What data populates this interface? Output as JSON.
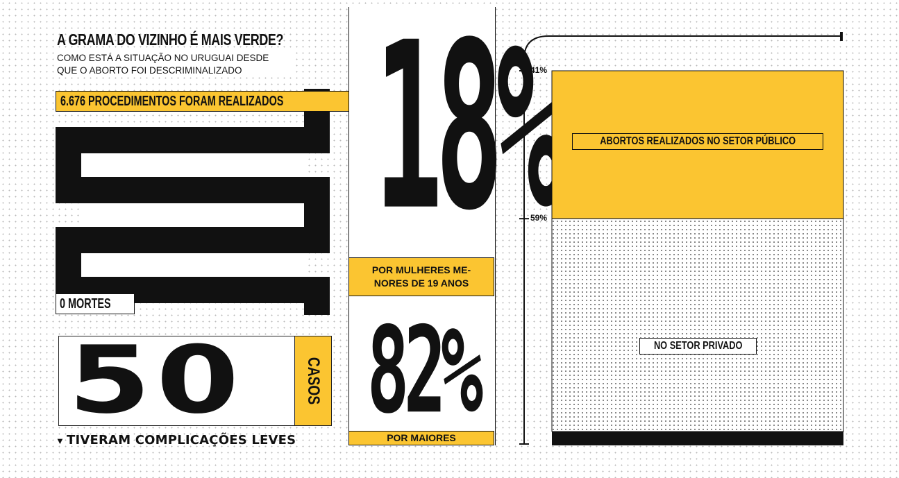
{
  "left": {
    "title": "A GRAMA DO VIZINHO É MAIS VERDE?",
    "subtitle": "COMO ESTÁ A SITUAÇÃO NO URUGUAI DESDE\nQUE O ABORTO FOI DESCRIMINALIZADO",
    "procedures_label": "6.676 PROCEDIMENTOS FORAM REALIZADOS",
    "deaths_label": "0 MORTES",
    "cases_number": "50",
    "cases_tag": "CASOS",
    "cases_caption": "TIVERAM COMPLICAÇÕES LEVES"
  },
  "middle": {
    "pct_under19": "18%",
    "under19_label": "POR MULHERES ME-\nNORES DE 19 ANOS",
    "pct_adults": "82%",
    "adults_label": "POR MAIORES"
  },
  "chart_data": {
    "type": "bar",
    "stacked": true,
    "categories": [
      ""
    ],
    "series": [
      {
        "name": "ABORTOS REALIZADOS NO SETOR PÚBLICO",
        "values": [
          41
        ],
        "color": "#fbc531"
      },
      {
        "name": "NO SETOR PRIVADO",
        "values": [
          59
        ],
        "color": "#dotted"
      }
    ],
    "tick_labels": [
      "41%",
      "59%"
    ],
    "ylim": [
      0,
      100
    ]
  },
  "colors": {
    "accent": "#fbc531",
    "ink": "#111111",
    "paper": "#ffffff"
  }
}
